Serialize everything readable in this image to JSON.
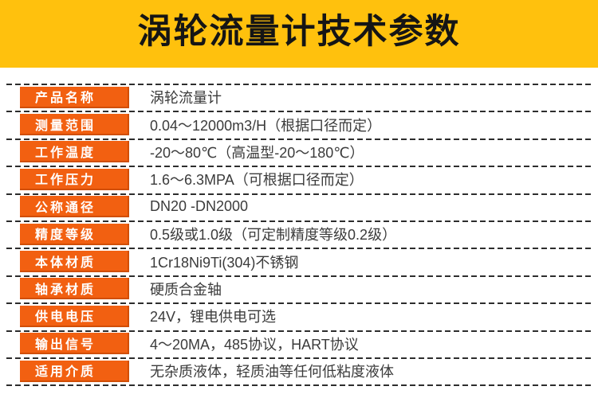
{
  "banner": {
    "title": "涡轮流量计技术参数",
    "background_color": "#ffc10d",
    "text_color": "#151515"
  },
  "theme": {
    "label_background_color": "#f26011",
    "label_edge_color": "#d14e05",
    "label_text_color": "#ffffff",
    "value_text_color": "#3b3b3b",
    "divider_color": "#2d2d2d",
    "page_background_color": "#ffffff"
  },
  "table": {
    "rows": [
      {
        "label": "产品名称",
        "value": "涡轮流量计"
      },
      {
        "label": "测量范围",
        "value": "0.04～12000m3/H（根据口径而定）"
      },
      {
        "label": "工作温度",
        "value": "-20～80℃（高温型-20～180℃）"
      },
      {
        "label": "工作压力",
        "value": "1.6～6.3MPA（可根据口径而定）"
      },
      {
        "label": "公称通径",
        "value": "DN20 -DN2000"
      },
      {
        "label": "精度等级",
        "value": "0.5级或1.0级（可定制精度等级0.2级）"
      },
      {
        "label": "本体材质",
        "value": "1Cr18Ni9Ti(304)不锈钢"
      },
      {
        "label": "轴承材质",
        "value": "硬质合金轴"
      },
      {
        "label": "供电电压",
        "value": "24V，锂电供电可选"
      },
      {
        "label": "输出信号",
        "value": "4～20MA，485协议，HART协议"
      },
      {
        "label": "适用介质",
        "value": "无杂质液体，轻质油等任何低粘度液体"
      }
    ]
  }
}
